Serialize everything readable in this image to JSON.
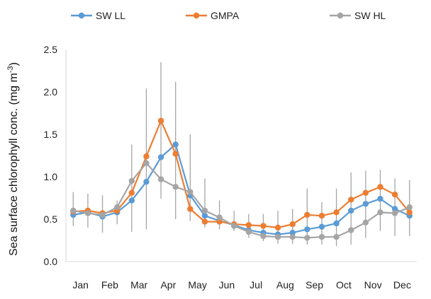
{
  "chart_data": {
    "type": "line",
    "title": "",
    "xlabel": "",
    "ylabel": "Sea surface chlorophyll conc. (mg m",
    "ylabel_sup": "-3",
    "ylabel_close": ")",
    "ylim": [
      0,
      2.5
    ],
    "yticks": [
      "0.0",
      "0.5",
      "1.0",
      "1.5",
      "2.0",
      "2.5"
    ],
    "month_labels": [
      "Jan",
      "Feb",
      "Mar",
      "Apr",
      "May",
      "Jun",
      "Jul",
      "Aug",
      "Sep",
      "Oct",
      "Nov",
      "Dec"
    ],
    "x_range": [
      0.5,
      12.5
    ],
    "grid": false,
    "legend_position": "top",
    "x": [
      0.75,
      1.25,
      1.75,
      2.25,
      2.75,
      3.25,
      3.75,
      4.25,
      4.75,
      5.25,
      5.75,
      6.25,
      6.75,
      7.25,
      7.75,
      8.25,
      8.75,
      9.25,
      9.75,
      10.25,
      10.75,
      11.25,
      11.75,
      12.25
    ],
    "series": [
      {
        "name": "SW LL",
        "color": "#5b9bd5",
        "values": [
          0.55,
          0.58,
          0.53,
          0.58,
          0.72,
          0.94,
          1.23,
          1.38,
          0.78,
          0.54,
          0.48,
          0.43,
          0.37,
          0.34,
          0.32,
          0.34,
          0.38,
          0.41,
          0.45,
          0.6,
          0.68,
          0.74,
          0.62,
          0.54
        ]
      },
      {
        "name": "GMPA",
        "color": "#ed7d31",
        "values": [
          0.59,
          0.6,
          0.57,
          0.6,
          0.81,
          1.24,
          1.66,
          1.27,
          0.62,
          0.47,
          0.47,
          0.44,
          0.43,
          0.42,
          0.4,
          0.44,
          0.55,
          0.54,
          0.58,
          0.73,
          0.81,
          0.88,
          0.79,
          0.58
        ]
      },
      {
        "name": "SW HL",
        "color": "#a5a5a5",
        "values": [
          0.6,
          0.57,
          0.55,
          0.64,
          0.95,
          1.16,
          0.97,
          0.88,
          0.82,
          0.6,
          0.52,
          0.42,
          0.35,
          0.3,
          0.29,
          0.29,
          0.28,
          0.29,
          0.29,
          0.37,
          0.46,
          0.58,
          0.57,
          0.64
        ]
      }
    ],
    "error_bars": {
      "color": "#a5a5a5",
      "low": [
        0.42,
        0.4,
        0.34,
        0.44,
        0.35,
        0.38,
        0.74,
        0.5,
        0.48,
        0.4,
        0.38,
        0.36,
        0.28,
        0.24,
        0.21,
        0.21,
        0.2,
        0.2,
        0.18,
        0.2,
        0.28,
        0.36,
        0.3,
        0.3
      ],
      "high": [
        0.82,
        0.8,
        0.78,
        0.72,
        1.38,
        2.04,
        2.35,
        2.12,
        1.5,
        0.98,
        0.72,
        0.6,
        0.56,
        0.56,
        0.6,
        0.62,
        0.86,
        0.7,
        0.86,
        1.05,
        1.07,
        1.08,
        0.98,
        0.96
      ]
    }
  }
}
